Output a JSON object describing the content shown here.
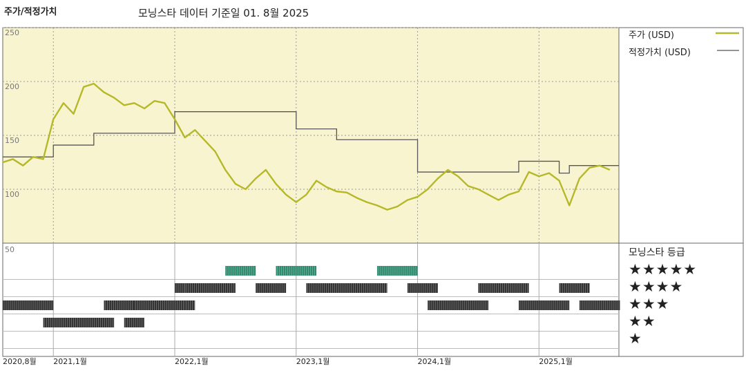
{
  "header": {
    "left_title": "주가/적정가치",
    "center_title": "모닝스타 데이터 기준일 01. 8월 2025"
  },
  "legend": {
    "price": "주가 (USD)",
    "fair_value": "적정가치 (USD)"
  },
  "rating_panel": {
    "title": "모닝스타 등급",
    "rows": [
      "★★★★★",
      "★★★★",
      "★★★",
      "★★",
      "★"
    ]
  },
  "colors": {
    "price_line": "#b5b829",
    "fair_value_line": "#555555",
    "upper_bg": "#f8f4cf",
    "five_star": "#2e8b6e",
    "rating_bar": "#333333"
  },
  "chart_data": {
    "type": "line",
    "ylim": [
      50,
      250
    ],
    "y_ticks": [
      250,
      200,
      150,
      100,
      50
    ],
    "x_tick_labels": [
      "2020,8월",
      "2021,1월",
      "2022,1월",
      "2023,1월",
      "2024,1월",
      "2025,1월"
    ],
    "x_tick_dates": [
      "2020-08",
      "2021-01",
      "2022-01",
      "2023-01",
      "2024-01",
      "2025-01"
    ],
    "x_range": [
      "2020-08",
      "2025-08"
    ],
    "series": [
      {
        "name": "주가 (USD)",
        "points": [
          [
            "2020-08",
            125
          ],
          [
            "2020-09",
            128
          ],
          [
            "2020-10",
            122
          ],
          [
            "2020-11",
            130
          ],
          [
            "2020-12",
            128
          ],
          [
            "2021-01",
            165
          ],
          [
            "2021-02",
            180
          ],
          [
            "2021-03",
            170
          ],
          [
            "2021-04",
            195
          ],
          [
            "2021-05",
            198
          ],
          [
            "2021-06",
            190
          ],
          [
            "2021-07",
            185
          ],
          [
            "2021-08",
            178
          ],
          [
            "2021-09",
            180
          ],
          [
            "2021-10",
            175
          ],
          [
            "2021-11",
            182
          ],
          [
            "2021-12",
            180
          ],
          [
            "2022-01",
            165
          ],
          [
            "2022-02",
            148
          ],
          [
            "2022-03",
            155
          ],
          [
            "2022-04",
            145
          ],
          [
            "2022-05",
            135
          ],
          [
            "2022-06",
            118
          ],
          [
            "2022-07",
            105
          ],
          [
            "2022-08",
            100
          ],
          [
            "2022-09",
            110
          ],
          [
            "2022-10",
            118
          ],
          [
            "2022-11",
            105
          ],
          [
            "2022-12",
            95
          ],
          [
            "2023-01",
            88
          ],
          [
            "2023-02",
            95
          ],
          [
            "2023-03",
            108
          ],
          [
            "2023-04",
            102
          ],
          [
            "2023-05",
            98
          ],
          [
            "2023-06",
            97
          ],
          [
            "2023-07",
            92
          ],
          [
            "2023-08",
            88
          ],
          [
            "2023-09",
            85
          ],
          [
            "2023-10",
            81
          ],
          [
            "2023-11",
            84
          ],
          [
            "2023-12",
            90
          ],
          [
            "2024-01",
            93
          ],
          [
            "2024-02",
            100
          ],
          [
            "2024-03",
            110
          ],
          [
            "2024-04",
            118
          ],
          [
            "2024-05",
            112
          ],
          [
            "2024-06",
            103
          ],
          [
            "2024-07",
            100
          ],
          [
            "2024-08",
            95
          ],
          [
            "2024-09",
            90
          ],
          [
            "2024-10",
            95
          ],
          [
            "2024-11",
            98
          ],
          [
            "2024-12",
            116
          ],
          [
            "2025-01",
            112
          ],
          [
            "2025-02",
            115
          ],
          [
            "2025-03",
            108
          ],
          [
            "2025-04",
            85
          ],
          [
            "2025-05",
            110
          ],
          [
            "2025-06",
            120
          ],
          [
            "2025-07",
            122
          ],
          [
            "2025-08",
            118
          ]
        ]
      },
      {
        "name": "적정가치 (USD)",
        "steps": [
          [
            "2020-08",
            130
          ],
          [
            "2021-01",
            141
          ],
          [
            "2021-05",
            152
          ],
          [
            "2022-01",
            172
          ],
          [
            "2023-01",
            156
          ],
          [
            "2023-05",
            146
          ],
          [
            "2024-01",
            116
          ],
          [
            "2024-11",
            126
          ],
          [
            "2025-03",
            115
          ],
          [
            "2025-04",
            122
          ]
        ]
      }
    ],
    "rating_segments": [
      {
        "stars": 3,
        "start": "2020-08",
        "end": "2020-12"
      },
      {
        "stars": 2,
        "start": "2020-12",
        "end": "2021-06"
      },
      {
        "stars": 3,
        "start": "2021-06",
        "end": "2021-08"
      },
      {
        "stars": 2,
        "start": "2021-08",
        "end": "2021-09"
      },
      {
        "stars": 3,
        "start": "2021-09",
        "end": "2022-01"
      },
      {
        "stars": 4,
        "start": "2022-01",
        "end": "2022-01"
      },
      {
        "stars": 3,
        "start": "2022-02",
        "end": "2022-02"
      },
      {
        "stars": 4,
        "start": "2022-02",
        "end": "2022-06"
      },
      {
        "stars": 5,
        "start": "2022-06",
        "end": "2022-08"
      },
      {
        "stars": 4,
        "start": "2022-09",
        "end": "2022-11"
      },
      {
        "stars": 5,
        "start": "2022-11",
        "end": "2023-02"
      },
      {
        "stars": 4,
        "start": "2023-02",
        "end": "2023-09"
      },
      {
        "stars": 5,
        "start": "2023-09",
        "end": "2023-12"
      },
      {
        "stars": 4,
        "start": "2023-12",
        "end": "2024-02"
      },
      {
        "stars": 3,
        "start": "2024-02",
        "end": "2024-07"
      },
      {
        "stars": 4,
        "start": "2024-07",
        "end": "2024-11"
      },
      {
        "stars": 3,
        "start": "2024-11",
        "end": "2025-03"
      },
      {
        "stars": 4,
        "start": "2025-03",
        "end": "2025-05"
      },
      {
        "stars": 3,
        "start": "2025-05",
        "end": "2025-08"
      }
    ]
  }
}
